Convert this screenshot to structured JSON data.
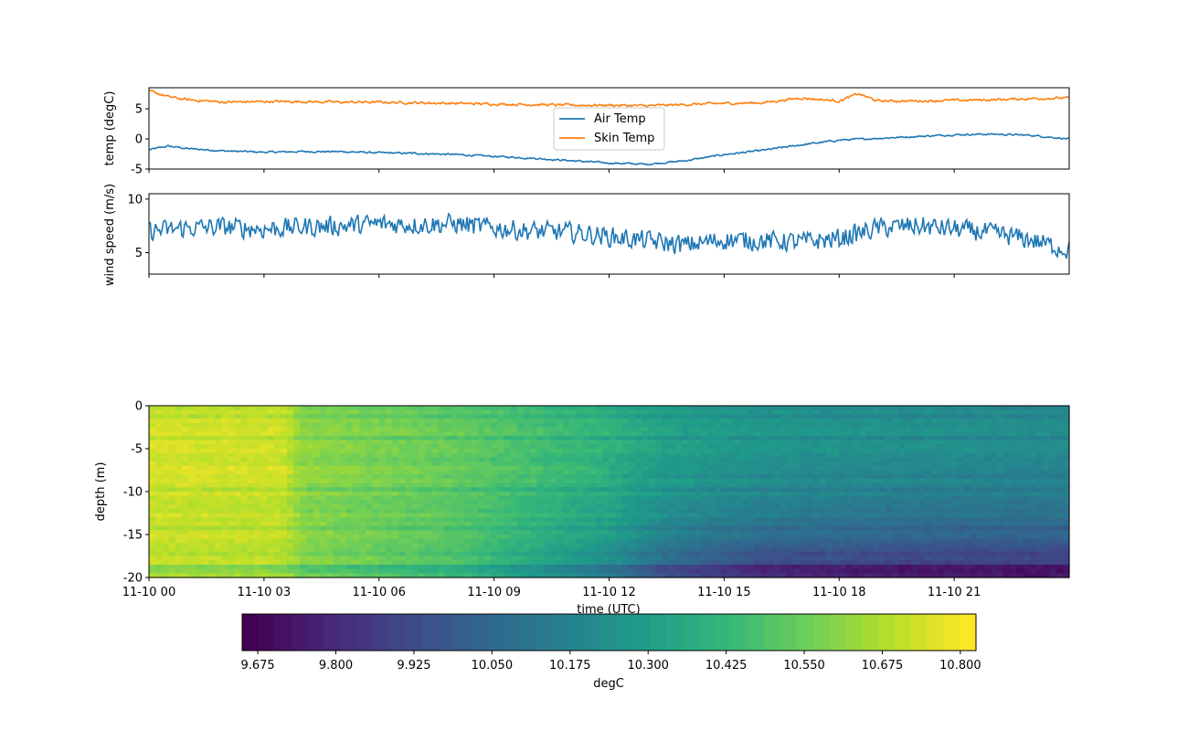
{
  "chart_data": [
    {
      "type": "line",
      "ylabel": "temp (degC)",
      "ylim": [
        -5,
        8.5
      ],
      "yticks": [
        -5,
        0,
        5
      ],
      "legend_placement": "upper-center",
      "series": [
        {
          "name": "Air Temp",
          "color": "#1f77b4",
          "x_hours": [
            0,
            0.5,
            1,
            2,
            3,
            4,
            5,
            6,
            7,
            8,
            9,
            10,
            11,
            12,
            13,
            14,
            15,
            16,
            17,
            18,
            19,
            20,
            21,
            22,
            23,
            24
          ],
          "values": [
            -1.8,
            -1.2,
            -1.6,
            -2.0,
            -2.2,
            -2.1,
            -2.1,
            -2.3,
            -2.4,
            -2.6,
            -2.9,
            -3.2,
            -3.6,
            -4.0,
            -4.2,
            -3.6,
            -2.6,
            -1.9,
            -1.0,
            -0.2,
            0.1,
            0.4,
            0.7,
            0.8,
            0.6,
            0.0
          ],
          "noise": 0.25
        },
        {
          "name": "Skin Temp",
          "color": "#ff7f0e",
          "x_hours": [
            0,
            0.5,
            1,
            2,
            3,
            4,
            5,
            6,
            7,
            8,
            9,
            10,
            11,
            12,
            13,
            14,
            15,
            16,
            17,
            18,
            18.5,
            19,
            20,
            21,
            22,
            23,
            24
          ],
          "values": [
            8.0,
            7.0,
            6.5,
            6.1,
            6.2,
            6.2,
            6.1,
            6.1,
            6.0,
            5.9,
            5.8,
            5.7,
            5.6,
            5.6,
            5.5,
            5.7,
            5.9,
            6.0,
            6.8,
            6.3,
            7.5,
            6.3,
            6.3,
            6.4,
            6.5,
            6.7,
            6.8
          ],
          "noise": 0.35
        }
      ]
    },
    {
      "type": "line",
      "ylabel": "wind speed (m/s)",
      "ylim": [
        3,
        10.5
      ],
      "yticks": [
        5,
        10
      ],
      "series": [
        {
          "color": "#1f77b4",
          "x_hours": [
            0,
            1,
            2,
            3,
            4,
            5,
            6,
            7,
            8,
            9,
            10,
            11,
            12,
            13,
            14,
            15,
            16,
            17,
            18,
            19,
            20,
            21,
            22,
            23,
            24
          ],
          "values": [
            7.0,
            7.3,
            7.4,
            7.2,
            7.4,
            7.5,
            7.7,
            7.6,
            7.7,
            7.3,
            7.0,
            6.9,
            6.5,
            6.1,
            5.7,
            6.2,
            6.1,
            6.0,
            6.3,
            7.3,
            7.5,
            7.2,
            6.8,
            6.2,
            5.2
          ],
          "noise": 1.1
        }
      ]
    },
    {
      "type": "heatmap",
      "xlabel": "time (UTC)",
      "ylabel": "depth (m)",
      "ylim": [
        -20,
        0
      ],
      "yticks": [
        0,
        -5,
        -10,
        -15,
        -20
      ],
      "xticks_hours": [
        0,
        3,
        6,
        9,
        12,
        15,
        18,
        21
      ],
      "xtick_labels": [
        "11-10 00",
        "11-10 03",
        "11-10 06",
        "11-10 09",
        "11-10 12",
        "11-10 15",
        "11-10 18",
        "11-10 21"
      ],
      "time_range_hours": [
        0,
        24
      ],
      "colormap": "viridis",
      "colorbar": {
        "label": "degC",
        "vmin": 9.65,
        "vmax": 10.825,
        "levels": 45,
        "ticks": [
          "9.675",
          "9.800",
          "9.925",
          "10.050",
          "10.175",
          "10.300",
          "10.425",
          "10.550",
          "10.675",
          "10.800"
        ],
        "tick_values": [
          9.675,
          9.8,
          9.925,
          10.05,
          10.175,
          10.3,
          10.425,
          10.55,
          10.675,
          10.8
        ]
      },
      "temperature_trend": {
        "hours": [
          0,
          3.5,
          4,
          8,
          12,
          13.5,
          16,
          20,
          24
        ],
        "surface": [
          10.72,
          10.71,
          10.6,
          10.52,
          10.38,
          10.3,
          10.25,
          10.22,
          10.2
        ],
        "bottom": [
          10.68,
          10.66,
          10.58,
          10.45,
          10.15,
          9.95,
          9.8,
          9.75,
          9.74
        ]
      }
    }
  ]
}
